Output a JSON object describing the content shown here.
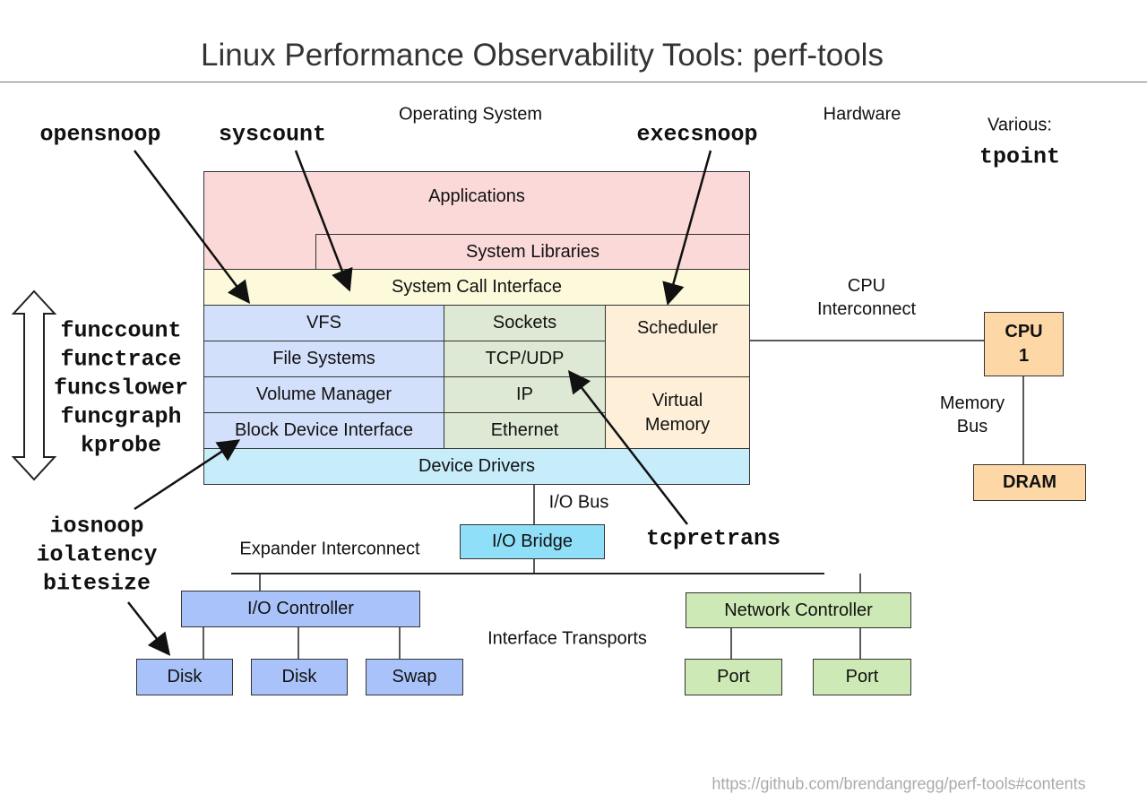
{
  "title": "Linux Performance Observability Tools: perf-tools",
  "section_labels": {
    "os": "Operating System",
    "hardware": "Hardware",
    "various": "Various:"
  },
  "colors": {
    "applications": "#fbd9d9",
    "syscall": "#fcfadb",
    "storage": "#d3e0fb",
    "network": "#dde9d4",
    "cpu_mem": "#fdefd8",
    "drivers": "#c7ecfa",
    "io_bridge": "#8fdff8",
    "io_hw": "#a9c3fa",
    "net_hw": "#cde9b5",
    "cpu": "#fdd8a6",
    "dram": "#fdd8a6"
  },
  "os_stack": {
    "applications": "Applications",
    "system_libraries": "System Libraries",
    "system_call_interface": "System Call Interface",
    "storage": [
      "VFS",
      "File Systems",
      "Volume Manager",
      "Block Device Interface"
    ],
    "network": [
      "Sockets",
      "TCP/UDP",
      "IP",
      "Ethernet"
    ],
    "scheduler": "Scheduler",
    "virtual_memory": "Virtual Memory",
    "device_drivers": "Device Drivers"
  },
  "hardware": {
    "cpu_interconnect": "CPU Interconnect",
    "cpu": "CPU 1",
    "memory_bus": "Memory Bus",
    "dram": "DRAM",
    "io_bus": "I/O Bus",
    "io_bridge": "I/O Bridge",
    "expander_interconnect": "Expander Interconnect",
    "io_controller": "I/O Controller",
    "network_controller": "Network Controller",
    "interface_transports": "Interface Transports",
    "devices": [
      "Disk",
      "Disk",
      "Swap"
    ],
    "ports": [
      "Port",
      "Port"
    ]
  },
  "tools": {
    "opensnoop": "opensnoop",
    "syscount": "syscount",
    "execsnoop": "execsnoop",
    "tpoint": "tpoint",
    "kernel_functions": [
      "funccount",
      "functrace",
      "funcslower",
      "funcgraph",
      "kprobe"
    ],
    "block_io": [
      "iosnoop",
      "iolatency",
      "bitesize"
    ],
    "tcpretrans": "tcpretrans"
  },
  "footer_url": "https://github.com/brendangregg/perf-tools#contents"
}
